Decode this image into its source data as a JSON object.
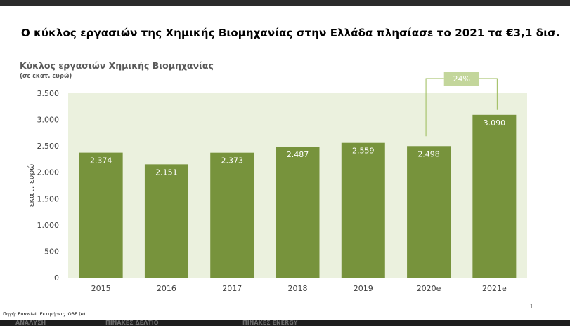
{
  "headline": "Ο κύκλος εργασιών της Χημικής Βιομηχανίας στην Ελλάδα πλησίασε το 2021 τα €3,1 δισ.",
  "page_number": "1",
  "source": "Πηγή: Eurostat. Εκτιμήσεις ΙΟΒΕ (e)",
  "bottom_strip": [
    "ΑΝΑΛΥΣΗ",
    "ΠΙΝΑΚΕΣ ΔΕΛΤΙΟ",
    "ΠΙΝΑΚΕΣ ENERGY"
  ],
  "colors": {
    "bar": "#77933c",
    "plot_bg": "#ebf1de",
    "growth_box": "#c3d69b",
    "bracket": "#9bbb59"
  },
  "chart_data": {
    "type": "bar",
    "title": "Κύκλος εργασιών Χημικής Βιομηχανίας",
    "subtitle": "(σε εκατ. ευρώ)",
    "ylabel": "εκατ. ευρώ",
    "xlabel": "",
    "categories": [
      "2015",
      "2016",
      "2017",
      "2018",
      "2019",
      "2020e",
      "2021e"
    ],
    "values": [
      2374,
      2151,
      2373,
      2487,
      2559,
      2498,
      3090
    ],
    "value_labels": [
      "2.374",
      "2.151",
      "2.373",
      "2.487",
      "2.559",
      "2.498",
      "3.090"
    ],
    "ylim": [
      0,
      3500
    ],
    "yticks": [
      0,
      500,
      1000,
      1500,
      2000,
      2500,
      3000,
      3500
    ],
    "ytick_labels": [
      "0",
      "500",
      "1.000",
      "1.500",
      "2.000",
      "2.500",
      "3.000",
      "3.500"
    ],
    "grid": false,
    "annotation": {
      "label": "24%",
      "from_category": "2020e",
      "to_category": "2021e"
    }
  }
}
